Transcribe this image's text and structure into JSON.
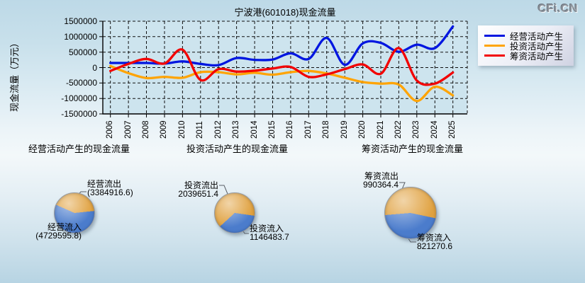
{
  "watermark": "CFi.CN",
  "chart_data": [
    {
      "type": "line",
      "title": "宁波港(601018)现金流量",
      "xlabel": "",
      "ylabel": "现金流量（万元）",
      "ylim": [
        -1500000,
        1500000
      ],
      "y_ticks": [
        1500000,
        1000000,
        500000,
        0,
        -500000,
        -1000000,
        -1500000
      ],
      "grid": true,
      "legend_position": "right",
      "categories": [
        "2006",
        "2007",
        "2008",
        "2009",
        "2010",
        "2011",
        "2012",
        "2013",
        "2014",
        "2015",
        "2016",
        "2017",
        "2018",
        "2019",
        "2020",
        "2021",
        "2022",
        "2023",
        "2024",
        "2025"
      ],
      "series": [
        {
          "name": "经营活动产生",
          "color": "#0016e0",
          "values": [
            150000,
            150000,
            150000,
            130000,
            200000,
            120000,
            80000,
            310000,
            250000,
            260000,
            460000,
            280000,
            960000,
            90000,
            780000,
            800000,
            510000,
            740000,
            630000,
            1330000
          ]
        },
        {
          "name": "投资活动产生",
          "color": "#ffa405",
          "values": [
            50000,
            -180000,
            -340000,
            -300000,
            -330000,
            -150000,
            -150000,
            -220000,
            -170000,
            -230000,
            -150000,
            -110000,
            -190000,
            -330000,
            -470000,
            -520000,
            -550000,
            -1080000,
            -620000,
            -900000
          ]
        },
        {
          "name": "筹资活动产生",
          "color": "#f20202",
          "values": [
            -110000,
            120000,
            280000,
            130000,
            580000,
            -400000,
            -50000,
            -130000,
            -100000,
            -30000,
            20000,
            -300000,
            -220000,
            -50000,
            100000,
            -200000,
            630000,
            -420000,
            -520000,
            -160000
          ]
        }
      ]
    },
    {
      "type": "pie",
      "title": "经营活动产生的现金流量",
      "slices": [
        {
          "label": "经营流出",
          "value": 3384916.6,
          "value_text": "(3384916.6)",
          "color": "#e0a13f"
        },
        {
          "label": "经营流入",
          "value": 4729595.8,
          "value_text": "(4729595.8)",
          "color": "#4b7ccc"
        }
      ]
    },
    {
      "type": "pie",
      "title": "投资活动产生的现金流量",
      "slices": [
        {
          "label": "投资流出",
          "value": 2039651.4,
          "value_text": "2039651.4",
          "color": "#e0a13f"
        },
        {
          "label": "投资流入",
          "value": 1146483.7,
          "value_text": "1146483.7",
          "color": "#4b7ccc"
        }
      ]
    },
    {
      "type": "pie",
      "title": "筹资活动产生的现金流量",
      "slices": [
        {
          "label": "筹资流出",
          "value": 990364.4,
          "value_text": "990364.4",
          "color": "#e0a13f"
        },
        {
          "label": "筹资流入",
          "value": 821270.6,
          "value_text": "821270.6",
          "color": "#4b7ccc"
        }
      ]
    }
  ]
}
